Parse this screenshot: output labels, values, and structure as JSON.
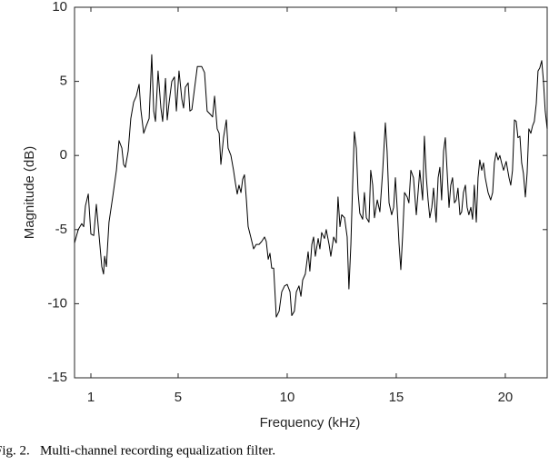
{
  "chart_data": {
    "type": "line",
    "xlabel": "Frequency (kHz)",
    "ylabel": "Magnitude (dB)",
    "caption": "Fig. 2.   Multi-channel recording equalization filter.",
    "color": "#000000",
    "xlim": [
      0.25,
      21.92
    ],
    "ylim": [
      -15,
      10
    ],
    "xticks": [
      1,
      5,
      10,
      15,
      20
    ],
    "yticks": [
      -15,
      -10,
      -5,
      0,
      5,
      10
    ],
    "grid": false,
    "x": [
      0.25,
      0.42,
      0.58,
      0.67,
      0.75,
      0.88,
      1.0,
      1.13,
      1.25,
      1.38,
      1.5,
      1.58,
      1.63,
      1.71,
      1.83,
      2.0,
      2.17,
      2.29,
      2.42,
      2.5,
      2.58,
      2.71,
      2.83,
      2.96,
      3.08,
      3.21,
      3.29,
      3.42,
      3.54,
      3.67,
      3.79,
      3.88,
      3.96,
      4.08,
      4.21,
      4.29,
      4.42,
      4.5,
      4.58,
      4.71,
      4.83,
      4.92,
      5.04,
      5.17,
      5.25,
      5.33,
      5.46,
      5.54,
      5.63,
      5.75,
      5.88,
      6.08,
      6.21,
      6.33,
      6.46,
      6.58,
      6.67,
      6.79,
      6.88,
      6.96,
      7.08,
      7.21,
      7.29,
      7.42,
      7.54,
      7.63,
      7.71,
      7.79,
      7.88,
      7.96,
      8.04,
      8.13,
      8.21,
      8.33,
      8.46,
      8.58,
      8.71,
      8.83,
      8.96,
      9.04,
      9.13,
      9.21,
      9.29,
      9.38,
      9.5,
      9.63,
      9.75,
      9.88,
      10.0,
      10.13,
      10.21,
      10.33,
      10.42,
      10.54,
      10.63,
      10.71,
      10.83,
      10.96,
      11.04,
      11.13,
      11.21,
      11.29,
      11.42,
      11.5,
      11.58,
      11.71,
      11.79,
      11.92,
      12.0,
      12.13,
      12.25,
      12.33,
      12.42,
      12.5,
      12.63,
      12.75,
      12.83,
      12.92,
      13.0,
      13.08,
      13.17,
      13.25,
      13.33,
      13.46,
      13.54,
      13.63,
      13.75,
      13.83,
      13.92,
      14.0,
      14.13,
      14.25,
      14.38,
      14.5,
      14.58,
      14.67,
      14.79,
      14.88,
      14.96,
      15.04,
      15.13,
      15.21,
      15.29,
      15.38,
      15.5,
      15.58,
      15.67,
      15.79,
      15.92,
      16.0,
      16.08,
      16.21,
      16.29,
      16.38,
      16.46,
      16.54,
      16.63,
      16.71,
      16.83,
      16.92,
      17.0,
      17.08,
      17.17,
      17.25,
      17.33,
      17.42,
      17.5,
      17.58,
      17.67,
      17.75,
      17.83,
      17.92,
      18.0,
      18.08,
      18.17,
      18.25,
      18.33,
      18.42,
      18.5,
      18.58,
      18.67,
      18.75,
      18.83,
      18.92,
      19.0,
      19.08,
      19.21,
      19.33,
      19.42,
      19.5,
      19.58,
      19.67,
      19.75,
      19.83,
      19.92,
      20.04,
      20.17,
      20.25,
      20.33,
      20.42,
      20.5,
      20.58,
      20.67,
      20.75,
      20.83,
      20.92,
      21.0,
      21.08,
      21.17,
      21.25,
      21.33,
      21.42,
      21.5,
      21.58,
      21.67,
      21.75,
      21.83,
      21.92
    ],
    "values": [
      -5.9,
      -5.0,
      -4.6,
      -4.8,
      -3.4,
      -2.6,
      -5.3,
      -5.4,
      -3.3,
      -5.5,
      -7.5,
      -8.0,
      -6.8,
      -7.5,
      -4.5,
      -2.8,
      -1.0,
      1.0,
      0.5,
      -0.6,
      -0.8,
      0.3,
      2.5,
      3.6,
      4.0,
      4.8,
      3.1,
      1.5,
      2.0,
      2.5,
      6.8,
      3.0,
      2.3,
      5.7,
      3.2,
      2.3,
      5.2,
      2.4,
      3.5,
      5.0,
      5.3,
      3.0,
      5.7,
      3.8,
      3.2,
      4.6,
      4.9,
      3.0,
      3.1,
      4.5,
      6.0,
      6.0,
      5.6,
      3.0,
      2.8,
      2.6,
      4.0,
      1.8,
      1.5,
      -0.6,
      1.2,
      2.4,
      0.5,
      0,
      -1.0,
      -1.9,
      -2.6,
      -2.0,
      -2.5,
      -1.6,
      -1.3,
      -3.0,
      -4.8,
      -5.5,
      -6.3,
      -6.0,
      -6.0,
      -5.8,
      -5.5,
      -5.8,
      -7.0,
      -6.6,
      -7.6,
      -7.6,
      -10.9,
      -10.5,
      -9.2,
      -8.8,
      -8.7,
      -9.2,
      -10.8,
      -10.5,
      -9.2,
      -8.8,
      -9.5,
      -8.4,
      -8.0,
      -6.5,
      -7.8,
      -6.0,
      -5.5,
      -6.8,
      -5.6,
      -6.3,
      -5.2,
      -5.6,
      -5.0,
      -6.0,
      -6.8,
      -5.5,
      -5.9,
      -2.8,
      -4.8,
      -4.0,
      -4.2,
      -5.5,
      -9.0,
      -6.0,
      -2.0,
      1.6,
      0.5,
      -2.5,
      -3.9,
      -4.3,
      -2.5,
      -4.2,
      -4.5,
      -1.0,
      -2.0,
      -4.2,
      -3.0,
      -3.8,
      -1.0,
      2.2,
      0.3,
      -3.2,
      -4.0,
      -3.5,
      -1.5,
      -3.5,
      -6.0,
      -7.7,
      -5.5,
      -2.5,
      -2.8,
      -3.2,
      -1.0,
      -1.5,
      -4.0,
      -2.5,
      -1.0,
      -3.0,
      1.3,
      -1.5,
      -3.0,
      -4.2,
      -3.5,
      -2.2,
      -4.5,
      -1.5,
      -0.8,
      -3.0,
      0.3,
      1.2,
      -1.0,
      -3.5,
      -2.0,
      -1.5,
      -3.2,
      -3.0,
      -2.2,
      -4.0,
      -3.8,
      -2.5,
      -2.0,
      -3.5,
      -4.0,
      -3.5,
      -4.3,
      -2.0,
      -4.5,
      -1.5,
      -0.3,
      -1.0,
      -0.5,
      -1.5,
      -2.5,
      -3.0,
      -2.5,
      -0.5,
      0.2,
      -0.3,
      0,
      -0.5,
      -1.0,
      -0.4,
      -1.5,
      -2.0,
      -1.0,
      2.4,
      2.3,
      1.2,
      1.3,
      -0.5,
      -1.2,
      -2.8,
      -1.2,
      1.8,
      1.5,
      2.0,
      2.3,
      3.5,
      5.7,
      5.9,
      6.4,
      5.0,
      3.0,
      1.8
    ]
  }
}
